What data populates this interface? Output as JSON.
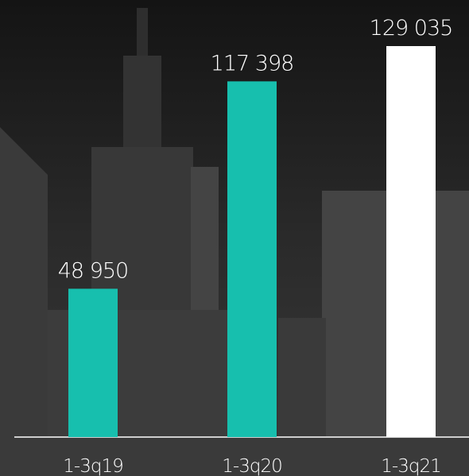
{
  "chart_data": {
    "type": "bar",
    "categories": [
      "1-3q19",
      "1-3q20",
      "1-3q21"
    ],
    "values": [
      48950,
      117398,
      129035
    ],
    "value_labels": [
      "48 950",
      "117 398",
      "129 035"
    ],
    "colors": [
      "#17bfae",
      "#17bfae",
      "#ffffff"
    ]
  }
}
